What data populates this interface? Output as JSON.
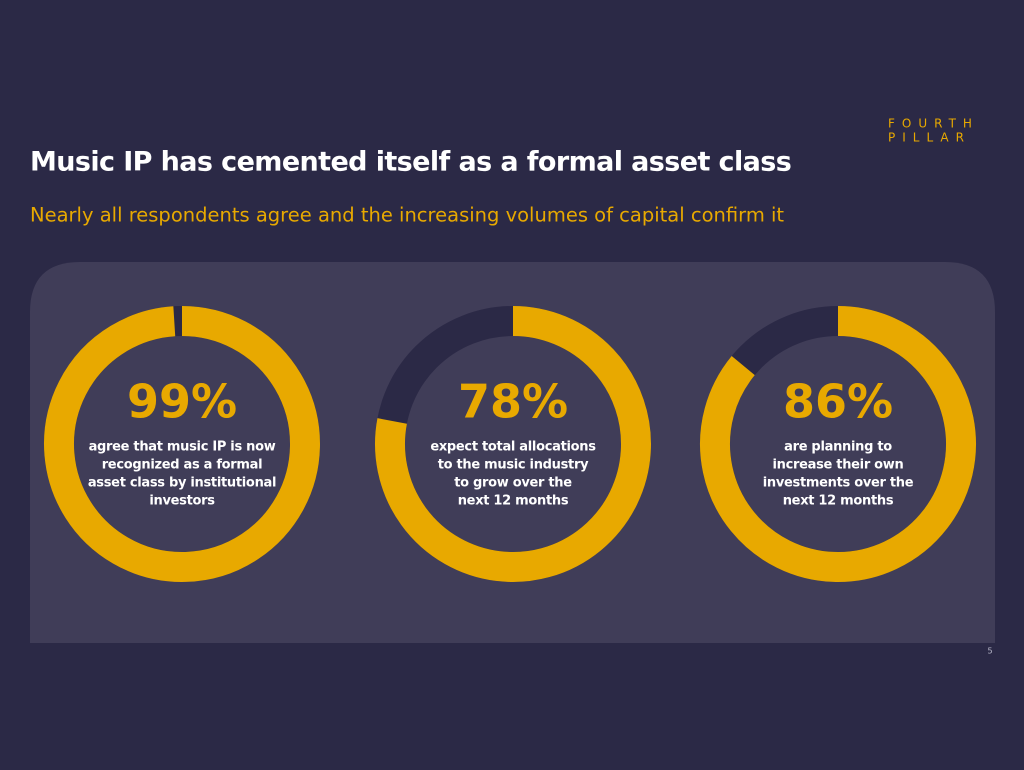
{
  "slide": {
    "title": "Music IP has cemented itself as a formal asset class",
    "subtitle": "Nearly all respondents agree and the increasing volumes of capital confirm it",
    "logo": [
      "FOURTH",
      "PILLAR"
    ],
    "page_number": "5"
  },
  "chart_data": [
    {
      "type": "donut",
      "values": [
        99
      ],
      "value_labels": [
        "99%"
      ],
      "color": "#e8a900",
      "track_color": "#2b2946",
      "caption": [
        "agree that music IP is now",
        "recognized as a formal",
        "asset class by institutional",
        "investors"
      ]
    },
    {
      "type": "donut",
      "values": [
        78
      ],
      "value_labels": [
        "78%"
      ],
      "color": "#e8a900",
      "track_color": "#2b2946",
      "caption": [
        "expect total allocations",
        "to the music industry",
        "to grow over the",
        "next 12 months"
      ]
    },
    {
      "type": "donut",
      "values": [
        86
      ],
      "value_labels": [
        "86%"
      ],
      "color": "#e8a900",
      "track_color": "#2b2946",
      "caption": [
        "are planning to",
        "increase their own",
        "investments over the",
        "next 12 months"
      ]
    }
  ]
}
